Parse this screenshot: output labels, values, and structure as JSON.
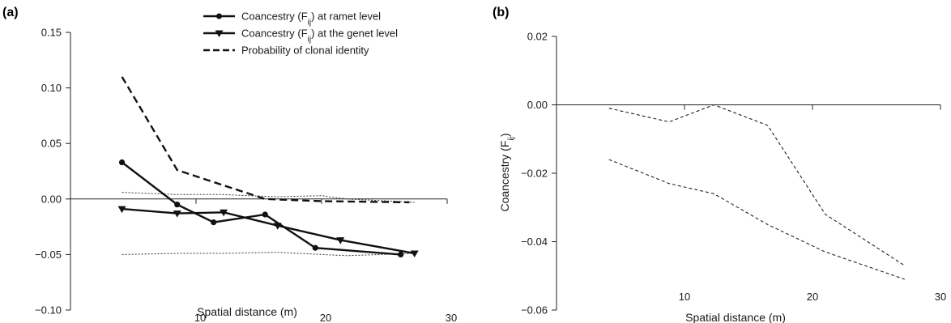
{
  "chart_data": [
    {
      "panel_label": "(a)",
      "type": "line",
      "xlabel": "Spatial distance (m)",
      "ylabel": "",
      "xlim": [
        0,
        30
      ],
      "ylim": [
        -0.1,
        0.15
      ],
      "xticks": [
        10,
        20,
        30
      ],
      "xtick_labels": [
        "10",
        "20",
        "30"
      ],
      "yticks": [
        -0.1,
        -0.05,
        0.0,
        0.05,
        0.1,
        0.15
      ],
      "ytick_labels": [
        "−0.10",
        "−0.05",
        "0.00",
        "0.05",
        "0.10",
        "0.15"
      ],
      "legend_position": "top-center",
      "series": [
        {
          "name": "Coancestry (F",
          "name_sub": "ij",
          "name_suffix": ") at ramet level",
          "style": "solid-circle",
          "x": [
            4.1,
            8.5,
            11.4,
            15.5,
            19.5,
            26.3
          ],
          "y": [
            0.033,
            -0.005,
            -0.021,
            -0.014,
            -0.044,
            -0.05
          ]
        },
        {
          "name": "Coancestry (F",
          "name_sub": "ij",
          "name_suffix": ") at the genet level",
          "style": "solid-triangle",
          "x": [
            4.1,
            8.5,
            12.2,
            16.5,
            21.5,
            27.4
          ],
          "y": [
            -0.009,
            -0.013,
            -0.012,
            -0.024,
            -0.037,
            -0.049
          ]
        },
        {
          "name": "Probability of clonal identity",
          "style": "dashed-thick",
          "x": [
            4.1,
            8.5,
            12.0,
            15.5,
            20.0,
            27.0
          ],
          "y": [
            0.11,
            0.026,
            0.013,
            0.0,
            -0.002,
            -0.003
          ]
        }
      ],
      "envelopes": [
        {
          "style": "dotted",
          "x": [
            4.1,
            8.5,
            12.0,
            16.5,
            20.0,
            22.0,
            27.4
          ],
          "y": [
            0.006,
            0.004,
            0.004,
            0.002,
            0.003,
            0.0,
            -0.003
          ]
        },
        {
          "style": "dotted",
          "x": [
            4.1,
            8.5,
            12.0,
            16.5,
            20.0,
            22.0,
            27.4
          ],
          "y": [
            -0.05,
            -0.049,
            -0.049,
            -0.048,
            -0.05,
            -0.051,
            -0.049
          ]
        }
      ]
    },
    {
      "panel_label": "(b)",
      "type": "line",
      "xlabel": "Spatial distance (m)",
      "ylabel": "Coancestry (F",
      "ylabel_sub": "ij",
      "ylabel_suffix": ")",
      "xlim": [
        0,
        30
      ],
      "ylim": [
        -0.06,
        0.02
      ],
      "xticks": [
        10,
        20,
        30
      ],
      "xtick_labels": [
        "10",
        "20",
        "30"
      ],
      "yticks": [
        -0.06,
        -0.04,
        -0.02,
        0.0,
        0.02
      ],
      "ytick_labels": [
        "−0.06",
        "−0.04",
        "−0.02",
        "0.00",
        "0.02"
      ],
      "envelopes": [
        {
          "style": "dashed-thin",
          "x": [
            4.1,
            8.8,
            12.3,
            16.5,
            21.0,
            27.2
          ],
          "y": [
            -0.001,
            -0.005,
            0.0,
            -0.006,
            -0.032,
            -0.047
          ]
        },
        {
          "style": "dashed-thin",
          "x": [
            4.1,
            8.8,
            12.3,
            16.5,
            21.0,
            27.2
          ],
          "y": [
            -0.016,
            -0.023,
            -0.026,
            -0.035,
            -0.043,
            -0.051
          ]
        }
      ]
    }
  ]
}
